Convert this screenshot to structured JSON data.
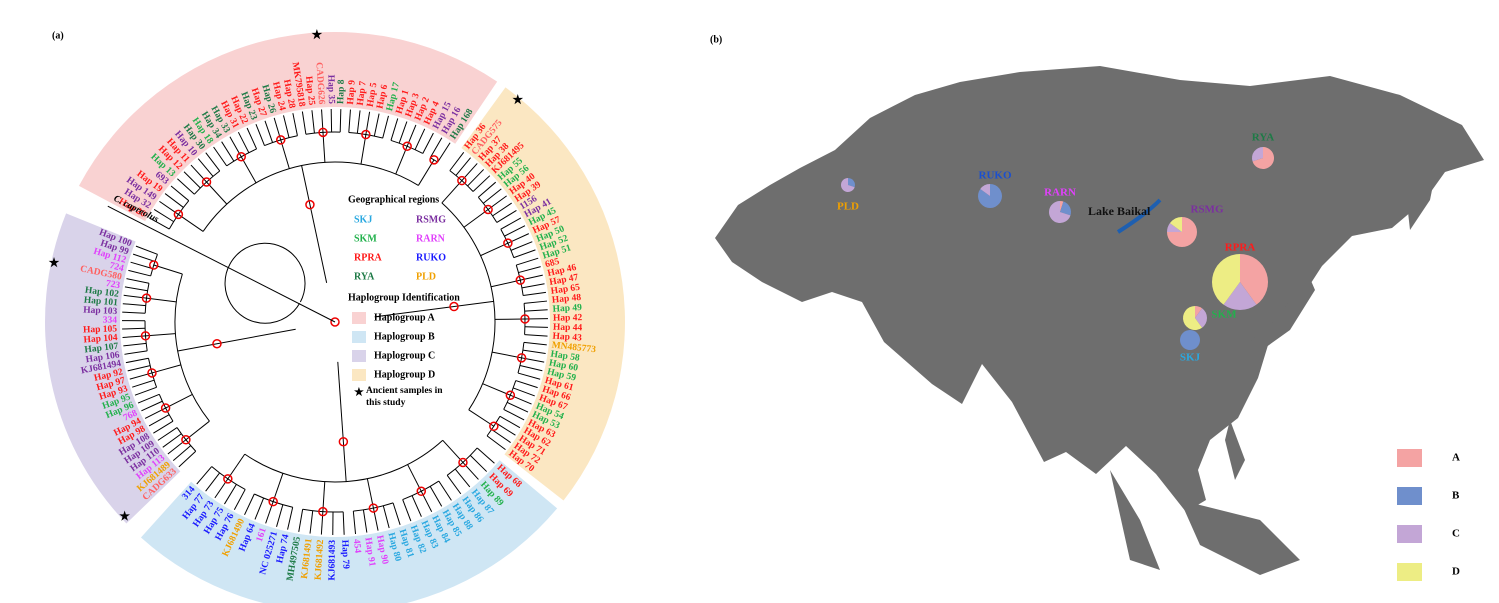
{
  "panel_a": {
    "label": "(a)",
    "outgroup": "C. capreolus",
    "regions_title": "Geographical regions",
    "regions": [
      {
        "name": "SKJ",
        "color": "#29a8e0"
      },
      {
        "name": "RSMG",
        "color": "#7b2fa0"
      },
      {
        "name": "SKM",
        "color": "#22b14c"
      },
      {
        "name": "RARN",
        "color": "#e040fb"
      },
      {
        "name": "RPRA",
        "color": "#ff1a1a"
      },
      {
        "name": "RUKO",
        "color": "#1a1aff"
      },
      {
        "name": "RYA",
        "color": "#1e7a46"
      },
      {
        "name": "PLD",
        "color": "#f0a000"
      }
    ],
    "haplogroups_title": "Haplogroup Identification",
    "ancient_label": "Ancient samples in this study",
    "haplogroups": [
      {
        "label": "Haplogroup A",
        "color": "#f9d2d2",
        "leaves": [
          {
            "label": "Hap 20",
            "color": "#ff1a1a"
          },
          {
            "label": "Hap 32",
            "color": "#7b2fa0"
          },
          {
            "label": "Hap 149",
            "color": "#7b2fa0"
          },
          {
            "label": "Hap 19",
            "color": "#ff1a1a"
          },
          {
            "label": "693",
            "color": "#7b2fa0"
          },
          {
            "label": "Hap 13",
            "color": "#22b14c"
          },
          {
            "label": "Hap 12",
            "color": "#ff1a1a"
          },
          {
            "label": "Hap 11",
            "color": "#ff1a1a"
          },
          {
            "label": "Hap 10",
            "color": "#7b2fa0"
          },
          {
            "label": "Hap 30",
            "color": "#1e7a46"
          },
          {
            "label": "Hap 18",
            "color": "#22b14c"
          },
          {
            "label": "Hap 34",
            "color": "#1e7a46"
          },
          {
            "label": "Hap 33",
            "color": "#1e7a46"
          },
          {
            "label": "Hap 31",
            "color": "#ff1a1a"
          },
          {
            "label": "Hap 22",
            "color": "#ff1a1a"
          },
          {
            "label": "Hap 23",
            "color": "#1e7a46"
          },
          {
            "label": "Hap 27",
            "color": "#ff1a1a"
          },
          {
            "label": "Hap 26",
            "color": "#1e7a46"
          },
          {
            "label": "Hap 24",
            "color": "#ff1a1a"
          },
          {
            "label": "Hap 28",
            "color": "#ff1a1a"
          },
          {
            "label": "MK795818",
            "color": "#ff1a1a"
          },
          {
            "label": "Hap 25",
            "color": "#ff1a1a"
          },
          {
            "label": "CADG626",
            "color": "#ff6060",
            "ancient": true
          },
          {
            "label": "Hap 35",
            "color": "#7b2fa0"
          },
          {
            "label": "Hap 8",
            "color": "#1e7a46"
          },
          {
            "label": "Hap 9",
            "color": "#ff1a1a"
          },
          {
            "label": "Hap 7",
            "color": "#ff1a1a"
          },
          {
            "label": "Hap 5",
            "color": "#ff1a1a"
          },
          {
            "label": "Hap 6",
            "color": "#ff1a1a"
          },
          {
            "label": "Hap 17",
            "color": "#22b14c"
          },
          {
            "label": "Hap 1",
            "color": "#ff1a1a"
          },
          {
            "label": "Hap 3",
            "color": "#ff1a1a"
          },
          {
            "label": "Hap 2",
            "color": "#ff1a1a"
          },
          {
            "label": "Hap 4",
            "color": "#ff1a1a"
          },
          {
            "label": "Hap 15",
            "color": "#7b2fa0"
          },
          {
            "label": "Hap 16",
            "color": "#7b2fa0"
          },
          {
            "label": "Hap 168",
            "color": "#1e7a46"
          }
        ]
      },
      {
        "label": "Haplogroup B",
        "color": "#cfe6f4",
        "leaves": [
          {
            "label": "Hap 68",
            "color": "#ff1a1a"
          },
          {
            "label": "Hap 69",
            "color": "#ff1a1a"
          },
          {
            "label": "Hap 89",
            "color": "#22b14c"
          },
          {
            "label": "Hap 87",
            "color": "#29a8e0"
          },
          {
            "label": "Hap 86",
            "color": "#29a8e0"
          },
          {
            "label": "Hap 88",
            "color": "#29a8e0"
          },
          {
            "label": "Hap 85",
            "color": "#29a8e0"
          },
          {
            "label": "Hap 84",
            "color": "#29a8e0"
          },
          {
            "label": "Hap 83",
            "color": "#29a8e0"
          },
          {
            "label": "Hap 82",
            "color": "#29a8e0"
          },
          {
            "label": "Hap 81",
            "color": "#29a8e0"
          },
          {
            "label": "Hap 80",
            "color": "#29a8e0"
          },
          {
            "label": "Hap 90",
            "color": "#e040fb"
          },
          {
            "label": "Hap 91",
            "color": "#e040fb"
          },
          {
            "label": "454",
            "color": "#e040fb"
          },
          {
            "label": "Hap 79",
            "color": "#1a1aff"
          },
          {
            "label": "KJ681493",
            "color": "#1a1aff"
          },
          {
            "label": "KJ681492",
            "color": "#f0a000"
          },
          {
            "label": "KJ681491",
            "color": "#f0a000"
          },
          {
            "label": "MH497505",
            "color": "#1e7a46"
          },
          {
            "label": "Hap 74",
            "color": "#1a1aff"
          },
          {
            "label": "NC 025271",
            "color": "#1a1aff"
          },
          {
            "label": "161",
            "color": "#e040fb"
          },
          {
            "label": "Hap 64",
            "color": "#1a1aff"
          },
          {
            "label": "KJ681490",
            "color": "#f0a000"
          },
          {
            "label": "Hap 76",
            "color": "#1a1aff"
          },
          {
            "label": "Hap 75",
            "color": "#1a1aff"
          },
          {
            "label": "Hap 73",
            "color": "#1a1aff"
          },
          {
            "label": "Hap 77",
            "color": "#1a1aff"
          },
          {
            "label": "314",
            "color": "#1a1aff"
          }
        ]
      },
      {
        "label": "Haplogroup C",
        "color": "#d9d3ea",
        "leaves": [
          {
            "label": "CADG633",
            "color": "#ff6060",
            "ancient": true
          },
          {
            "label": "KJ681489",
            "color": "#f0a000"
          },
          {
            "label": "Hap 113",
            "color": "#e040fb"
          },
          {
            "label": "Hap 110",
            "color": "#7b2fa0"
          },
          {
            "label": "Hap 109",
            "color": "#7b2fa0"
          },
          {
            "label": "Hap 108",
            "color": "#7b2fa0"
          },
          {
            "label": "Hap 98",
            "color": "#ff1a1a"
          },
          {
            "label": "Hap 94",
            "color": "#ff1a1a"
          },
          {
            "label": "768",
            "color": "#e040fb"
          },
          {
            "label": "Hap 96",
            "color": "#22b14c"
          },
          {
            "label": "Hap 95",
            "color": "#22b14c"
          },
          {
            "label": "Hap 93",
            "color": "#ff1a1a"
          },
          {
            "label": "Hap 97",
            "color": "#ff1a1a"
          },
          {
            "label": "Hap 92",
            "color": "#ff1a1a"
          },
          {
            "label": "KJ681494",
            "color": "#7b2fa0"
          },
          {
            "label": "Hap 106",
            "color": "#7b2fa0"
          },
          {
            "label": "Hap 107",
            "color": "#1e7a46"
          },
          {
            "label": "Hap 104",
            "color": "#ff1a1a"
          },
          {
            "label": "Hap 105",
            "color": "#ff1a1a"
          },
          {
            "label": "334",
            "color": "#e040fb"
          },
          {
            "label": "Hap 103",
            "color": "#7b2fa0"
          },
          {
            "label": "Hap 101",
            "color": "#1e7a46"
          },
          {
            "label": "Hap 102",
            "color": "#1e7a46"
          },
          {
            "label": "723",
            "color": "#e040fb"
          },
          {
            "label": "CADG580",
            "color": "#ff6060",
            "ancient": true
          },
          {
            "label": "724",
            "color": "#e040fb"
          },
          {
            "label": "Hap 112",
            "color": "#e040fb"
          },
          {
            "label": "Hap 99",
            "color": "#7b2fa0"
          },
          {
            "label": "Hap 100",
            "color": "#7b2fa0"
          }
        ]
      },
      {
        "label": "Haplogroup D",
        "color": "#fbe7c2",
        "leaves": [
          {
            "label": "Hap 36",
            "color": "#ff1a1a"
          },
          {
            "label": "CADG575",
            "color": "#ff6060",
            "ancient": true
          },
          {
            "label": "Hap 37",
            "color": "#ff1a1a"
          },
          {
            "label": "Hap 38",
            "color": "#ff1a1a"
          },
          {
            "label": "KJ681495",
            "color": "#ff1a1a"
          },
          {
            "label": "Hap 55",
            "color": "#22b14c"
          },
          {
            "label": "Hap 56",
            "color": "#22b14c"
          },
          {
            "label": "Hap 40",
            "color": "#ff1a1a"
          },
          {
            "label": "Hap 39",
            "color": "#ff1a1a"
          },
          {
            "label": "1156",
            "color": "#7b2fa0"
          },
          {
            "label": "Hap 41",
            "color": "#7b2fa0"
          },
          {
            "label": "Hap 45",
            "color": "#22b14c"
          },
          {
            "label": "Hap 57",
            "color": "#ff1a1a"
          },
          {
            "label": "Hap 50",
            "color": "#22b14c"
          },
          {
            "label": "Hap 52",
            "color": "#22b14c"
          },
          {
            "label": "Hap 51",
            "color": "#22b14c"
          },
          {
            "label": "685",
            "color": "#ff1a1a"
          },
          {
            "label": "Hap 46",
            "color": "#ff1a1a"
          },
          {
            "label": "Hap 47",
            "color": "#ff1a1a"
          },
          {
            "label": "Hap 65",
            "color": "#ff1a1a"
          },
          {
            "label": "Hap 48",
            "color": "#ff1a1a"
          },
          {
            "label": "Hap 49",
            "color": "#22b14c"
          },
          {
            "label": "Hap 42",
            "color": "#ff1a1a"
          },
          {
            "label": "Hap 44",
            "color": "#ff1a1a"
          },
          {
            "label": "Hap 43",
            "color": "#ff1a1a"
          },
          {
            "label": "MN485773",
            "color": "#f0a000"
          },
          {
            "label": "Hap 58",
            "color": "#22b14c"
          },
          {
            "label": "Hap 60",
            "color": "#22b14c"
          },
          {
            "label": "Hap 59",
            "color": "#22b14c"
          },
          {
            "label": "Hap 61",
            "color": "#ff1a1a"
          },
          {
            "label": "Hap 66",
            "color": "#ff1a1a"
          },
          {
            "label": "Hap 67",
            "color": "#ff1a1a"
          },
          {
            "label": "Hap 54",
            "color": "#22b14c"
          },
          {
            "label": "Hap 53",
            "color": "#22b14c"
          },
          {
            "label": "Hap 63",
            "color": "#ff1a1a"
          },
          {
            "label": "Hap 62",
            "color": "#ff1a1a"
          },
          {
            "label": "Hap 71",
            "color": "#ff1a1a"
          },
          {
            "label": "Hap 72",
            "color": "#ff1a1a"
          },
          {
            "label": "Hap 70",
            "color": "#ff1a1a"
          }
        ]
      }
    ]
  },
  "panel_b": {
    "label": "(b)",
    "lake": "Lake Baikal",
    "legend": [
      {
        "label": "A",
        "color": "#f4a3a3"
      },
      {
        "label": "B",
        "color": "#6f8fcc"
      },
      {
        "label": "C",
        "color": "#c3a6d6"
      },
      {
        "label": "D",
        "color": "#eded84"
      }
    ],
    "sites": [
      {
        "name": "PLD",
        "color": "#f0a000",
        "values": [
          0,
          30,
          70,
          0
        ]
      },
      {
        "name": "RUKO",
        "color": "#1a4fd0",
        "values": [
          0,
          85,
          15,
          0
        ]
      },
      {
        "name": "RARN",
        "color": "#e040fb",
        "values": [
          5,
          25,
          70,
          0
        ]
      },
      {
        "name": "RSMG",
        "color": "#7b2fa0",
        "values": [
          75,
          0,
          10,
          15
        ]
      },
      {
        "name": "RYA",
        "color": "#1e7a46",
        "values": [
          70,
          0,
          30,
          0
        ]
      },
      {
        "name": "RPRA",
        "color": "#ff1a1a",
        "values": [
          40,
          0,
          20,
          40
        ]
      },
      {
        "name": "SKM",
        "color": "#22b14c",
        "values": [
          10,
          0,
          30,
          60
        ]
      },
      {
        "name": "SKJ",
        "color": "#29a8e0",
        "values": [
          0,
          100,
          0,
          0
        ]
      }
    ]
  }
}
